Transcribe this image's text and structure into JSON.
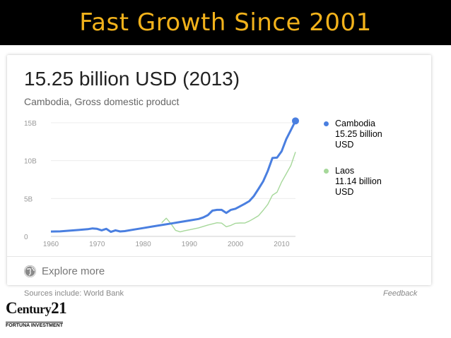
{
  "header": {
    "title": "Fast Growth Since 2001"
  },
  "card": {
    "headline": "15.25 billion USD (2013)",
    "subtitle": "Cambodia, Gross domestic product",
    "explore_label": "Explore more"
  },
  "footer": {
    "sources": "Sources include: World Bank",
    "feedback": "Feedback"
  },
  "logo": {
    "text_main": "Century21",
    "text_sub": "FORTUNA INVESTMENT"
  },
  "legend": [
    {
      "name": "Cambodia",
      "value": "15.25 billion",
      "unit": "USD",
      "color": "#4a7fe0"
    },
    {
      "name": "Laos",
      "value": "11.14 billion",
      "unit": "USD",
      "color": "#a6d89a"
    }
  ],
  "chart_data": {
    "type": "line",
    "title": "",
    "xlabel": "",
    "ylabel": "",
    "xlim": [
      1960,
      2013
    ],
    "ylim": [
      0,
      15
    ],
    "x_ticks": [
      1960,
      1970,
      1980,
      1990,
      2000,
      2010
    ],
    "y_ticks": [
      {
        "value": 0,
        "label": "0"
      },
      {
        "value": 5,
        "label": "5B"
      },
      {
        "value": 10,
        "label": "10B"
      },
      {
        "value": 15,
        "label": "15B"
      }
    ],
    "grid": true,
    "legend_position": "right",
    "series": [
      {
        "name": "Cambodia",
        "color": "#4a7fe0",
        "points": [
          [
            1960,
            0.64
          ],
          [
            1962,
            0.66
          ],
          [
            1964,
            0.75
          ],
          [
            1966,
            0.85
          ],
          [
            1968,
            0.95
          ],
          [
            1969,
            1.05
          ],
          [
            1970,
            1.0
          ],
          [
            1971,
            0.8
          ],
          [
            1972,
            1.0
          ],
          [
            1973,
            0.6
          ],
          [
            1974,
            0.8
          ],
          [
            1975,
            0.65
          ],
          [
            1976,
            0.7
          ],
          [
            1978,
            0.9
          ],
          [
            1980,
            1.1
          ],
          [
            1982,
            1.3
          ],
          [
            1984,
            1.5
          ],
          [
            1986,
            1.7
          ],
          [
            1988,
            1.9
          ],
          [
            1990,
            2.1
          ],
          [
            1992,
            2.3
          ],
          [
            1993,
            2.5
          ],
          [
            1994,
            2.8
          ],
          [
            1995,
            3.4
          ],
          [
            1996,
            3.5
          ],
          [
            1997,
            3.5
          ],
          [
            1998,
            3.1
          ],
          [
            1999,
            3.5
          ],
          [
            2000,
            3.65
          ],
          [
            2001,
            3.98
          ],
          [
            2002,
            4.3
          ],
          [
            2003,
            4.66
          ],
          [
            2004,
            5.34
          ],
          [
            2005,
            6.29
          ],
          [
            2006,
            7.27
          ],
          [
            2007,
            8.64
          ],
          [
            2008,
            10.35
          ],
          [
            2009,
            10.4
          ],
          [
            2010,
            11.24
          ],
          [
            2011,
            12.83
          ],
          [
            2012,
            14.04
          ],
          [
            2013,
            15.25
          ]
        ]
      },
      {
        "name": "Laos",
        "color": "#a6d89a",
        "points": [
          [
            1984,
            1.8
          ],
          [
            1985,
            2.4
          ],
          [
            1986,
            1.7
          ],
          [
            1987,
            0.8
          ],
          [
            1988,
            0.6
          ],
          [
            1989,
            0.75
          ],
          [
            1990,
            0.87
          ],
          [
            1992,
            1.13
          ],
          [
            1994,
            1.5
          ],
          [
            1996,
            1.8
          ],
          [
            1997,
            1.75
          ],
          [
            1998,
            1.28
          ],
          [
            1999,
            1.45
          ],
          [
            2000,
            1.73
          ],
          [
            2001,
            1.77
          ],
          [
            2002,
            1.76
          ],
          [
            2003,
            2.02
          ],
          [
            2004,
            2.37
          ],
          [
            2005,
            2.74
          ],
          [
            2006,
            3.45
          ],
          [
            2007,
            4.22
          ],
          [
            2008,
            5.44
          ],
          [
            2009,
            5.83
          ],
          [
            2010,
            7.18
          ],
          [
            2011,
            8.25
          ],
          [
            2012,
            9.36
          ],
          [
            2013,
            11.14
          ]
        ]
      }
    ]
  }
}
